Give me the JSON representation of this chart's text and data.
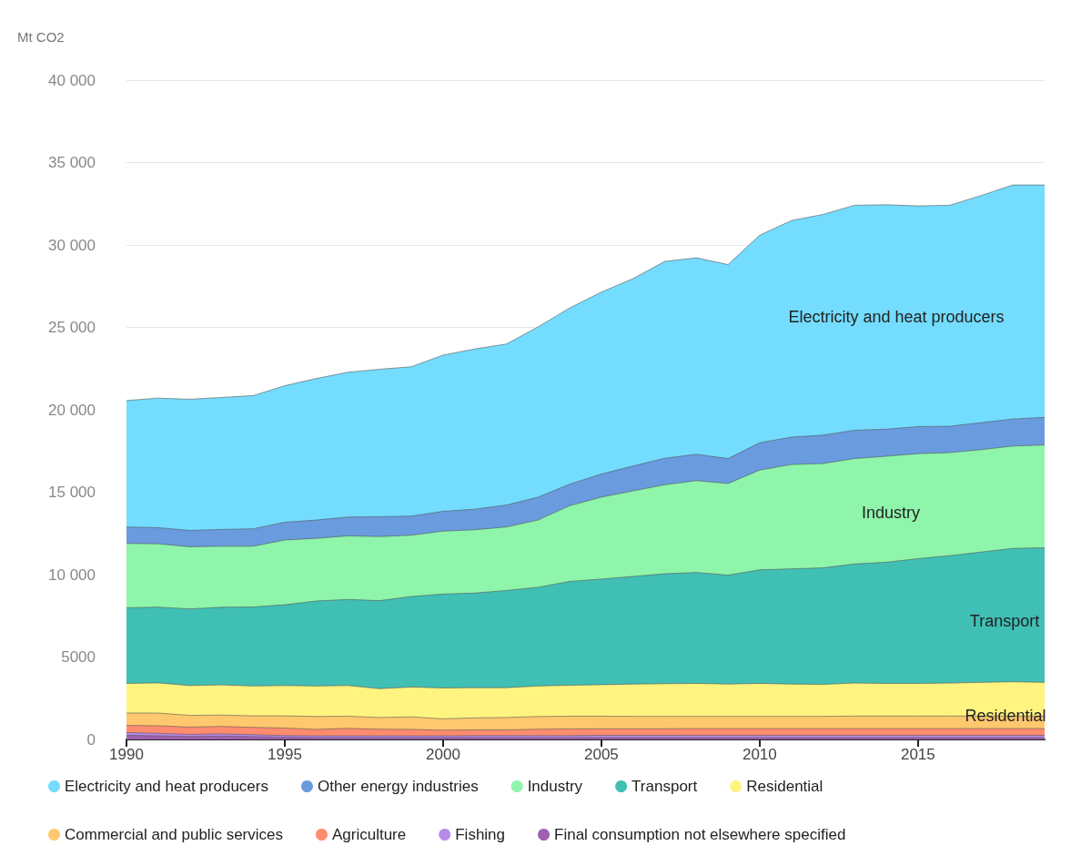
{
  "chart_data": {
    "type": "area",
    "stacked": true,
    "ylabel": "Mt CO2",
    "x": [
      1990,
      1991,
      1992,
      1993,
      1994,
      1995,
      1996,
      1997,
      1998,
      1999,
      2000,
      2001,
      2002,
      2003,
      2004,
      2005,
      2006,
      2007,
      2008,
      2009,
      2010,
      2011,
      2012,
      2013,
      2014,
      2015,
      2016,
      2017,
      2018,
      2019
    ],
    "xlim": [
      1990,
      2019
    ],
    "xticks": [
      1990,
      1995,
      2000,
      2005,
      2010,
      2015
    ],
    "ylim": [
      0,
      40000
    ],
    "yticks": [
      0,
      5000,
      {
        "value": 10000,
        "label": "10 000"
      },
      {
        "value": 15000,
        "label": "15 000"
      },
      {
        "value": 20000,
        "label": "20 000"
      },
      {
        "value": 25000,
        "label": "25 000"
      },
      {
        "value": 30000,
        "label": "30 000"
      },
      {
        "value": 35000,
        "label": "35 000"
      },
      {
        "value": 40000,
        "label": "40 000"
      }
    ],
    "grid": "y",
    "legend": "bottom",
    "marker": "none",
    "series": [
      {
        "name": "Final consumption not elsewhere specified",
        "color": "#a060b0",
        "values": [
          250,
          220,
          180,
          200,
          170,
          120,
          110,
          110,
          110,
          110,
          110,
          110,
          110,
          110,
          110,
          110,
          110,
          110,
          110,
          110,
          110,
          110,
          110,
          110,
          110,
          110,
          110,
          110,
          110,
          110
        ]
      },
      {
        "name": "Fishing",
        "color": "#b88ae8",
        "values": [
          170,
          150,
          130,
          140,
          120,
          110,
          110,
          110,
          110,
          110,
          110,
          120,
          120,
          120,
          120,
          140,
          140,
          140,
          140,
          140,
          140,
          140,
          140,
          140,
          140,
          140,
          140,
          140,
          140,
          140
        ]
      },
      {
        "name": "Agriculture",
        "color": "#ff8c6e",
        "values": [
          430,
          460,
          440,
          450,
          440,
          460,
          390,
          450,
          400,
          390,
          340,
          350,
          350,
          390,
          410,
          400,
          400,
          400,
          410,
          410,
          410,
          410,
          410,
          410,
          410,
          410,
          410,
          410,
          410,
          410
        ]
      },
      {
        "name": "Commercial and public services",
        "color": "#ffc86e",
        "values": [
          750,
          770,
          710,
          690,
          700,
          740,
          780,
          740,
          710,
          760,
          690,
          730,
          750,
          770,
          770,
          760,
          750,
          750,
          740,
          740,
          740,
          740,
          740,
          760,
          760,
          760,
          760,
          760,
          760,
          760
        ]
      },
      {
        "name": "Residential",
        "color": "#fff480",
        "values": [
          1800,
          1830,
          1810,
          1830,
          1810,
          1840,
          1850,
          1860,
          1750,
          1810,
          1870,
          1830,
          1810,
          1850,
          1880,
          1910,
          1960,
          1980,
          2000,
          1960,
          2000,
          1960,
          1940,
          2000,
          1980,
          1980,
          2000,
          2040,
          2080,
          2040
        ]
      },
      {
        "name": "Transport",
        "color": "#40bfb5",
        "values": [
          4590,
          4600,
          4650,
          4710,
          4800,
          4900,
          5160,
          5220,
          5340,
          5490,
          5700,
          5740,
          5900,
          5990,
          6300,
          6410,
          6530,
          6670,
          6730,
          6610,
          6890,
          6990,
          7070,
          7230,
          7350,
          7570,
          7730,
          7910,
          8090,
          8170
        ]
      },
      {
        "name": "Industry",
        "color": "#8ef5aa",
        "values": [
          3900,
          3840,
          3770,
          3700,
          3680,
          3930,
          3800,
          3860,
          3890,
          3720,
          3820,
          3840,
          3850,
          4080,
          4590,
          4970,
          5190,
          5400,
          5570,
          5560,
          6050,
          6330,
          6330,
          6390,
          6430,
          6370,
          6250,
          6210,
          6210,
          6230
        ]
      },
      {
        "name": "Other energy industries",
        "color": "#6a9bde",
        "values": [
          1000,
          980,
          990,
          1020,
          1060,
          1080,
          1110,
          1140,
          1200,
          1160,
          1200,
          1250,
          1330,
          1390,
          1310,
          1400,
          1510,
          1610,
          1600,
          1510,
          1660,
          1660,
          1720,
          1720,
          1640,
          1640,
          1600,
          1640,
          1640,
          1680
        ]
      },
      {
        "name": "Electricity and heat producers",
        "color": "#73dcff",
        "values": [
          7670,
          7860,
          7960,
          8010,
          8080,
          8280,
          8590,
          8790,
          8950,
          9060,
          9480,
          9720,
          9770,
          10330,
          10690,
          11040,
          11370,
          11940,
          11920,
          11770,
          12590,
          13140,
          13390,
          13650,
          13620,
          13390,
          13410,
          13780,
          14200,
          14100
        ]
      }
    ],
    "annotations": [
      "Electricity and heat producers",
      "Industry",
      "Transport",
      "Residential"
    ]
  }
}
